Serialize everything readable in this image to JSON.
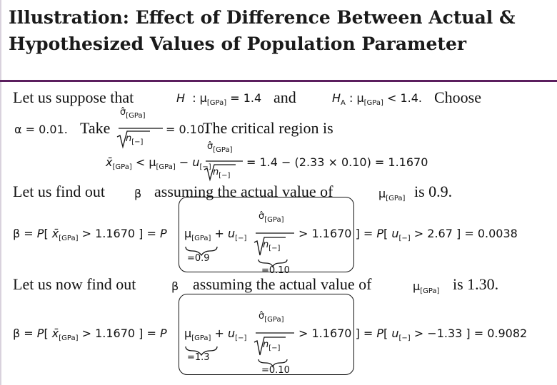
{
  "title": {
    "line1": "Illustration: Effect of Difference Between Actual &",
    "line2": "Hypothesized Values of Population Parameter"
  },
  "intro": {
    "lead": "Let us suppose that",
    "null_hyp": "H  : μ[GPa] = 1.4",
    "and": "and",
    "alt_hyp": "HA : μ[GPa] < 1.4.",
    "choose": "Choose"
  },
  "params": {
    "alpha": "α = 0.01.",
    "take": "Take",
    "sigma_over_root_n": "σ̂[GPa] / √n[−] = 0.10.",
    "critical_text": "The critical region is"
  },
  "critical_region": {
    "lhs": "x̄[GPa] < μ[GPa] − u[−] σ̂[GPa]/√n[−] = 1.4 − (2.33 × 0.10) = 1.1670"
  },
  "case1": {
    "lead": "Let us find out",
    "beta_symbol": "β",
    "middle": "assuming the actual value of",
    "mu_symbol": "μ[GPa]",
    "tail": "is 0.9.",
    "equation": "β = P[x̄[GPa] > 1.1670] = P[μ[GPa] + u[−] σ̂[GPa]/√n[−] > 1.1670] = P[u[−] > 2.67] = 0.0038",
    "mu_value": "=0.9",
    "se_value": "=0.10",
    "result": "0.0038",
    "z": "2.67"
  },
  "case2": {
    "lead": "Let us now find out",
    "beta_symbol": "β",
    "middle": "assuming the actual value of",
    "mu_symbol": "μ[GPa]",
    "tail": "is 1.30.",
    "equation": "β = P[x̄[GPa] > 1.1670] = P[μ[GPa] + u[−] σ̂[GPa]/√n[−] > 1.1670] = P[u[−] > −1.33] = 0.9082",
    "mu_value": "=1.3",
    "se_value": "=0.10",
    "result": "0.9082",
    "z": "−1.33"
  },
  "colors": {
    "accent_rule": "#5b1e5e",
    "text": "#111111"
  }
}
